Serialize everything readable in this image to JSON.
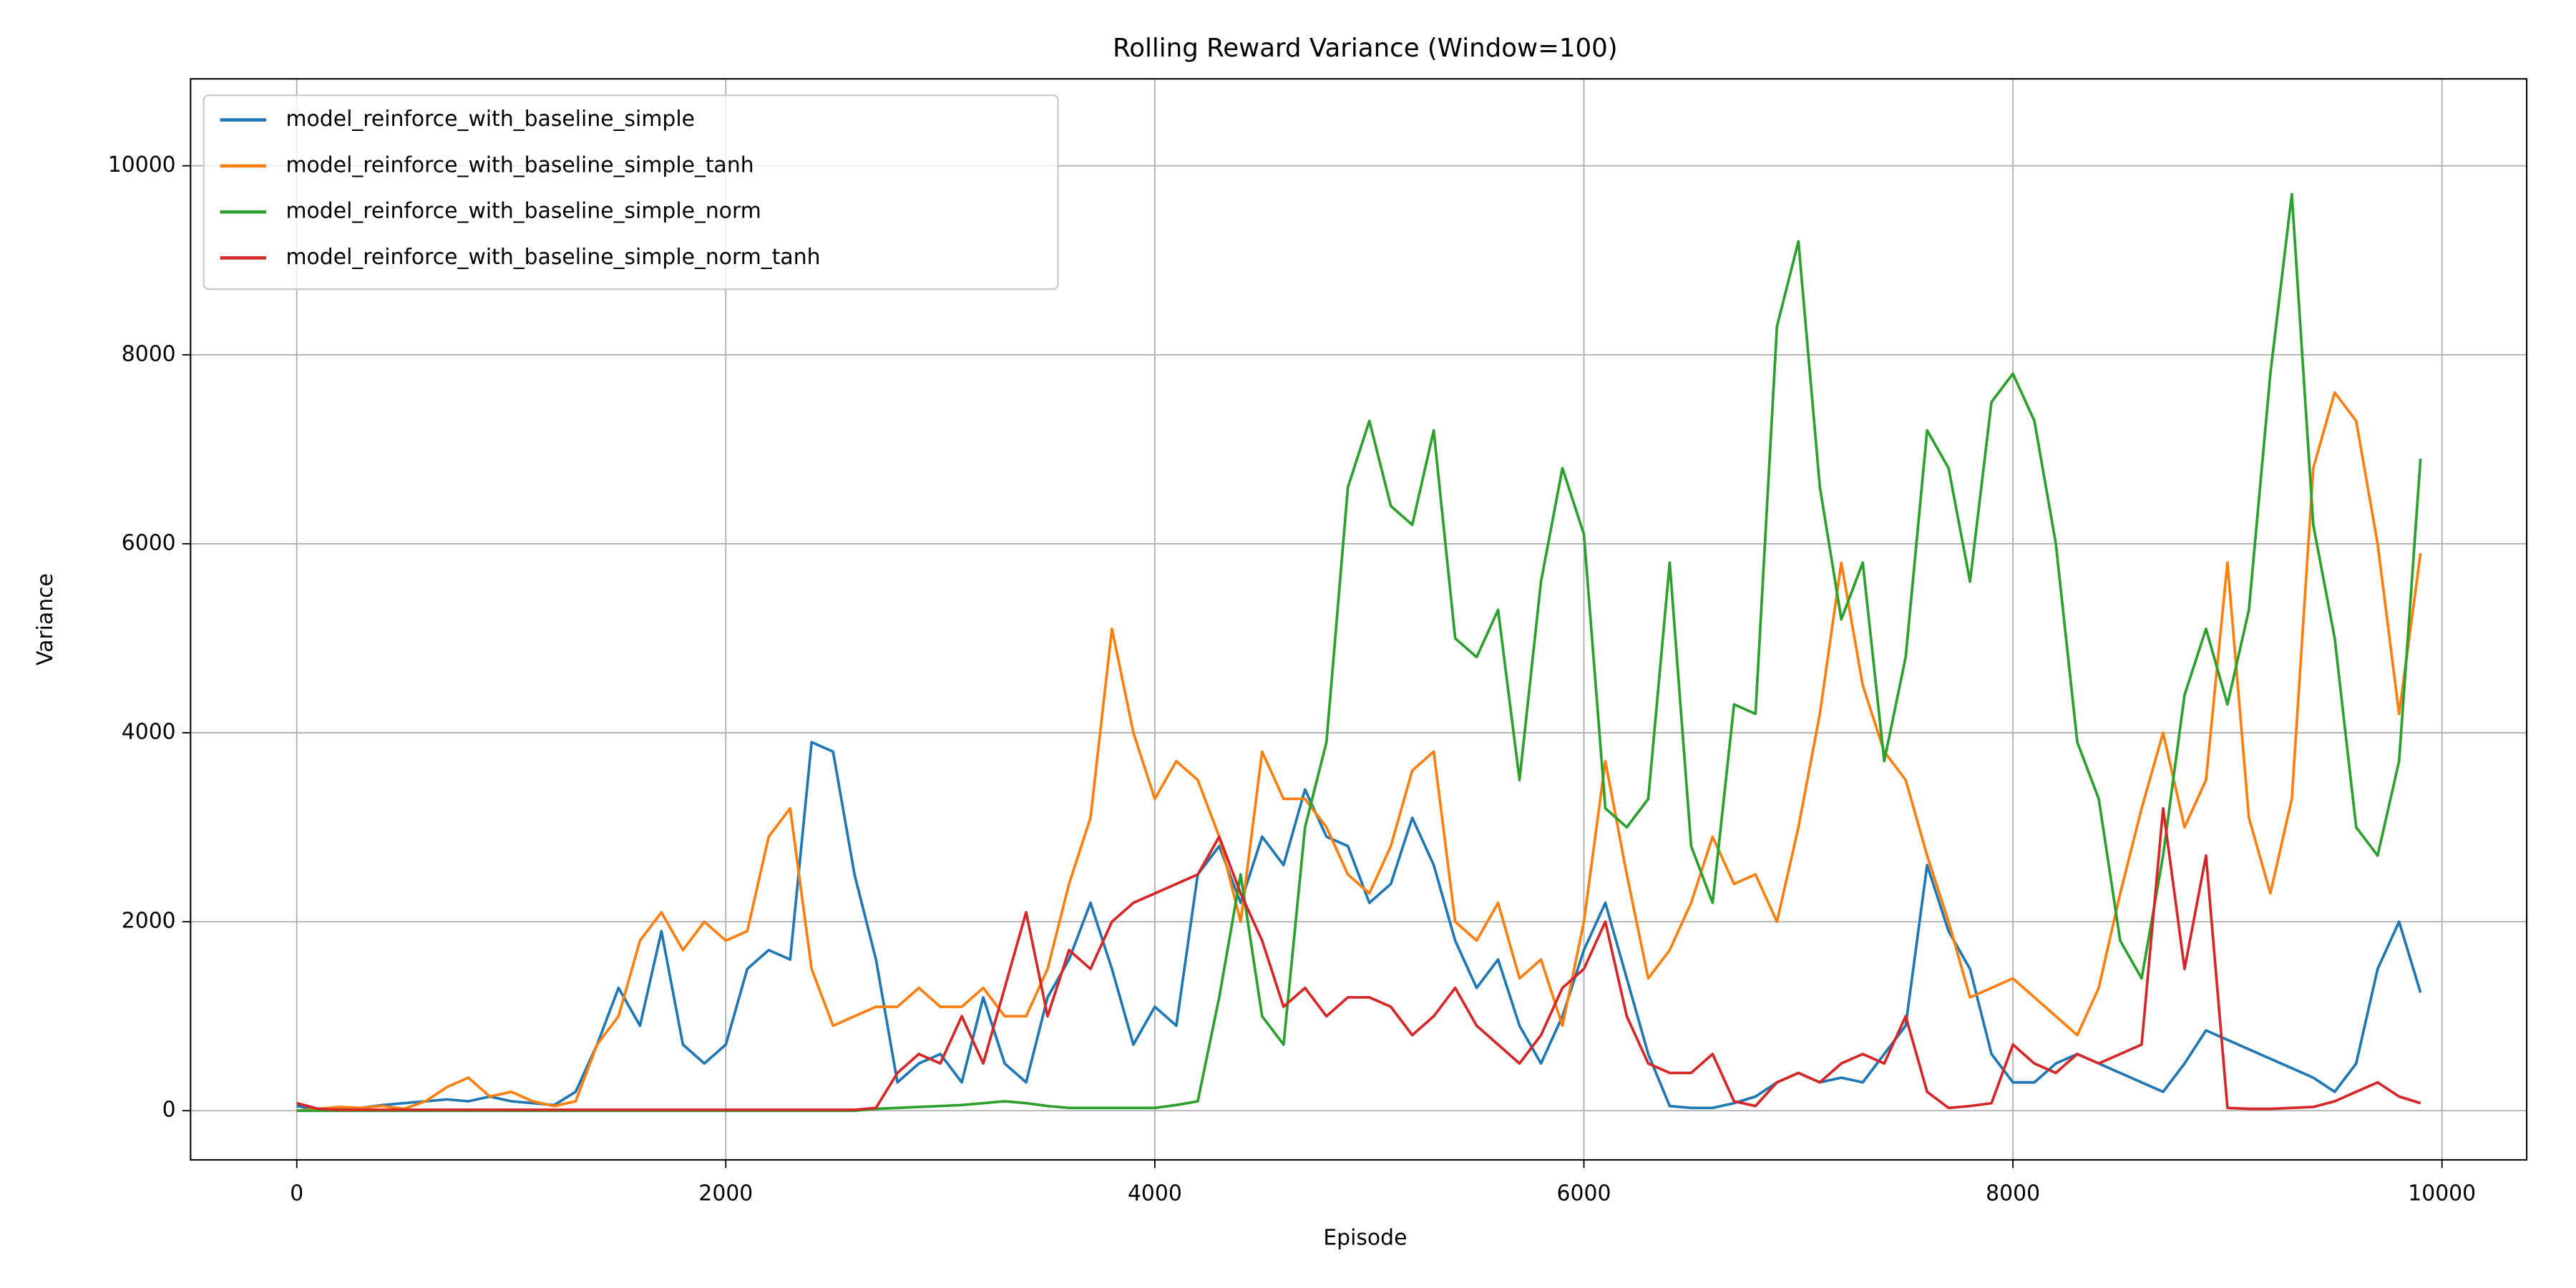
{
  "chart_data": {
    "type": "line",
    "title": "Rolling Reward Variance (Window=100)",
    "xlabel": "Episode",
    "ylabel": "Variance",
    "x": [
      0,
      100,
      200,
      300,
      400,
      500,
      600,
      700,
      800,
      900,
      1000,
      1100,
      1200,
      1300,
      1400,
      1500,
      1600,
      1700,
      1800,
      1900,
      2000,
      2100,
      2200,
      2300,
      2400,
      2500,
      2600,
      2700,
      2800,
      2900,
      3000,
      3100,
      3200,
      3300,
      3400,
      3500,
      3600,
      3700,
      3800,
      3900,
      4000,
      4100,
      4200,
      4300,
      4400,
      4500,
      4600,
      4700,
      4800,
      4900,
      5000,
      5100,
      5200,
      5300,
      5400,
      5500,
      5600,
      5700,
      5800,
      5900,
      6000,
      6100,
      6200,
      6300,
      6400,
      6500,
      6600,
      6700,
      6800,
      6900,
      7000,
      7100,
      7200,
      7300,
      7400,
      7500,
      7600,
      7700,
      7800,
      7900,
      8000,
      8100,
      8200,
      8300,
      8400,
      8500,
      8600,
      8700,
      8800,
      8900,
      9000,
      9100,
      9200,
      9300,
      9400,
      9500,
      9600,
      9700,
      9800,
      9900
    ],
    "series": [
      {
        "name": "model_reinforce_with_baseline_simple",
        "color": "#1f77b4",
        "values": [
          50,
          10,
          20,
          30,
          60,
          80,
          100,
          120,
          100,
          150,
          100,
          80,
          60,
          200,
          700,
          1300,
          900,
          1900,
          700,
          500,
          700,
          1500,
          1700,
          1600,
          3900,
          3800,
          2500,
          1600,
          300,
          500,
          600,
          300,
          1200,
          500,
          300,
          1200,
          1600,
          2200,
          1500,
          700,
          1100,
          900,
          2500,
          2800,
          2200,
          2900,
          2600,
          3400,
          2900,
          2800,
          2200,
          2400,
          3100,
          2600,
          1800,
          1300,
          1600,
          900,
          500,
          1000,
          1700,
          2200,
          1400,
          600,
          50,
          30,
          30,
          80,
          150,
          300,
          400,
          300,
          350,
          300,
          600,
          900,
          2600,
          1900,
          1500,
          600,
          300,
          300,
          500,
          600,
          500,
          400,
          300,
          200,
          500,
          850,
          750,
          650,
          550,
          450,
          350,
          200,
          500,
          1500,
          2000,
          1250
        ]
      },
      {
        "name": "model_reinforce_with_baseline_simple_tanh",
        "color": "#ff7f0e",
        "values": [
          0,
          20,
          40,
          30,
          50,
          20,
          100,
          250,
          350,
          150,
          200,
          100,
          50,
          100,
          700,
          1000,
          1800,
          2100,
          1700,
          2000,
          1800,
          1900,
          2900,
          3200,
          1500,
          900,
          1000,
          1100,
          1100,
          1300,
          1100,
          1100,
          1300,
          1000,
          1000,
          1500,
          2400,
          3100,
          5100,
          4000,
          3300,
          3700,
          3500,
          2900,
          2000,
          3800,
          3300,
          3300,
          3000,
          2500,
          2300,
          2800,
          3600,
          3800,
          2000,
          1800,
          2200,
          1400,
          1600,
          900,
          2000,
          3700,
          2500,
          1400,
          1700,
          2200,
          2900,
          2400,
          2500,
          2000,
          3000,
          4200,
          5800,
          4500,
          3800,
          3500,
          2700,
          2000,
          1200,
          1300,
          1400,
          1200,
          1000,
          800,
          1300,
          2300,
          3200,
          4000,
          3000,
          3500,
          5800,
          3100,
          2300,
          3300,
          6800,
          7600,
          7300,
          6000,
          4200,
          5900
        ]
      },
      {
        "name": "model_reinforce_with_baseline_simple_norm",
        "color": "#2ca02c",
        "values": [
          0,
          0,
          0,
          0,
          0,
          0,
          0,
          0,
          0,
          0,
          0,
          0,
          0,
          0,
          0,
          0,
          0,
          0,
          0,
          0,
          0,
          0,
          0,
          0,
          0,
          0,
          0,
          20,
          30,
          40,
          50,
          60,
          80,
          100,
          80,
          50,
          30,
          30,
          30,
          30,
          30,
          60,
          100,
          1200,
          2500,
          1000,
          700,
          3000,
          3900,
          6600,
          7300,
          6400,
          6200,
          7200,
          5000,
          4800,
          5300,
          3500,
          5600,
          6800,
          6100,
          3200,
          3000,
          3300,
          5800,
          2800,
          2200,
          4300,
          4200,
          8300,
          9200,
          6600,
          5200,
          5800,
          3700,
          4800,
          7200,
          6800,
          5600,
          7500,
          7800,
          7300,
          6000,
          3900,
          3300,
          1800,
          1400,
          2700,
          4400,
          5100,
          4300,
          5300,
          7800,
          9700,
          6200,
          5000,
          3000,
          2700,
          3700,
          6900
        ]
      },
      {
        "name": "model_reinforce_with_baseline_simple_norm_tanh",
        "color": "#d62728",
        "values": [
          80,
          20,
          10,
          10,
          10,
          10,
          10,
          10,
          10,
          10,
          10,
          10,
          10,
          10,
          10,
          10,
          10,
          10,
          10,
          10,
          10,
          10,
          10,
          10,
          10,
          10,
          10,
          30,
          400,
          600,
          500,
          1000,
          500,
          1300,
          2100,
          1000,
          1700,
          1500,
          2000,
          2200,
          2300,
          2400,
          2500,
          2900,
          2300,
          1800,
          1100,
          1300,
          1000,
          1200,
          1200,
          1100,
          800,
          1000,
          1300,
          900,
          700,
          500,
          800,
          1300,
          1500,
          2000,
          1000,
          500,
          400,
          400,
          600,
          100,
          50,
          300,
          400,
          300,
          500,
          600,
          500,
          1000,
          200,
          30,
          50,
          80,
          700,
          500,
          400,
          600,
          500,
          600,
          700,
          3200,
          1500,
          2700,
          30,
          20,
          20,
          30,
          40,
          100,
          200,
          300,
          150,
          80
        ]
      }
    ],
    "xlim": [
      -495,
      10395
    ],
    "ylim": [
      -520,
      10920
    ],
    "xticks": [
      0,
      2000,
      4000,
      6000,
      8000,
      10000
    ],
    "yticks": [
      0,
      2000,
      4000,
      6000,
      8000,
      10000
    ],
    "grid": true,
    "legend": "upper left"
  }
}
